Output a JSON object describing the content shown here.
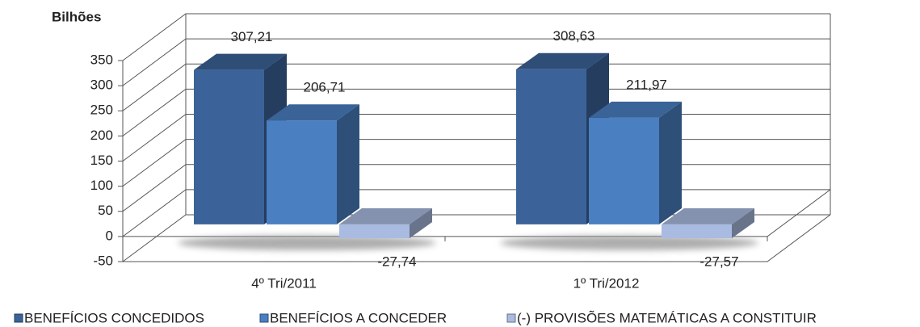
{
  "chart_data": {
    "type": "bar3d",
    "y_axis_label": "Bilhões",
    "categories": [
      "4º Tri/2011",
      "1º Tri/2012"
    ],
    "series": [
      {
        "name": "BENEFÍCIOS CONCEDIDOS",
        "color": "#3b6399",
        "values": [
          307.21,
          308.63
        ],
        "value_labels": [
          "307,21",
          "308,63"
        ]
      },
      {
        "name": "BENEFÍCIOS A CONCEDER",
        "color": "#4a7fc1",
        "values": [
          206.71,
          211.97
        ],
        "value_labels": [
          "206,71",
          "211,97"
        ]
      },
      {
        "name": "(-) PROVISÕES MATEMÁTICAS A CONSTITUIR",
        "color": "#a9bbe0",
        "values": [
          -27.74,
          -27.57
        ],
        "value_labels": [
          "-27,74",
          "-27,57"
        ]
      }
    ],
    "ylim": [
      -50,
      350
    ],
    "yticks": [
      -50,
      0,
      50,
      100,
      150,
      200,
      250,
      300,
      350
    ],
    "grid": true
  }
}
